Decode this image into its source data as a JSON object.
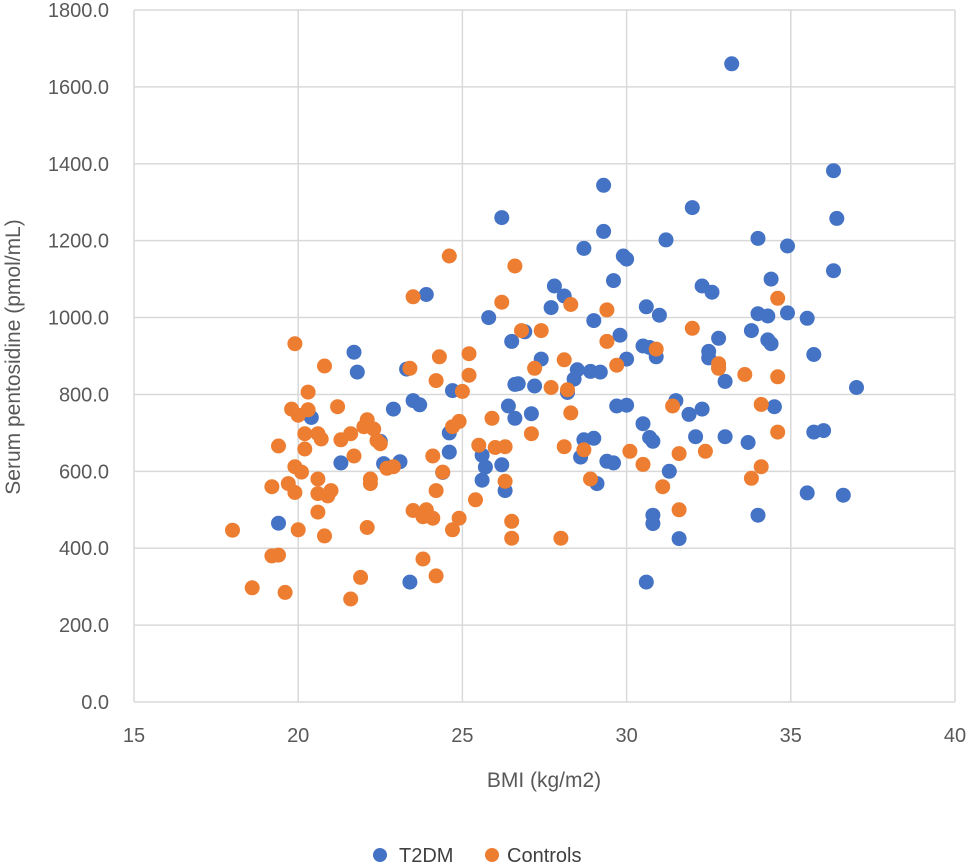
{
  "chart_data": {
    "type": "scatter",
    "title": "",
    "xlabel": "BMI (kg/m2)",
    "ylabel": "Serum pentosidine (pmol/mL)",
    "xlim": [
      15,
      40
    ],
    "ylim": [
      0,
      1800
    ],
    "xticks": [
      "15",
      "20",
      "25",
      "30",
      "35",
      "40"
    ],
    "yticks": [
      "0.0",
      "200.0",
      "400.0",
      "600.0",
      "800.0",
      "1000.0",
      "1200.0",
      "1400.0",
      "1600.0",
      "1800.0"
    ],
    "grid": true,
    "legend_position": "bottom",
    "series": [
      {
        "name": "T2DM",
        "color": "#4472c4",
        "points": [
          [
            19.4,
            465
          ],
          [
            20.4,
            740
          ],
          [
            21.3,
            622
          ],
          [
            21.7,
            910
          ],
          [
            21.8,
            858
          ],
          [
            22.5,
            678
          ],
          [
            22.6,
            620
          ],
          [
            22.9,
            762
          ],
          [
            23.1,
            625
          ],
          [
            23.3,
            866
          ],
          [
            23.4,
            312
          ],
          [
            23.5,
            784
          ],
          [
            23.7,
            773
          ],
          [
            23.9,
            1060
          ],
          [
            24.4,
            597
          ],
          [
            24.6,
            650
          ],
          [
            24.6,
            700
          ],
          [
            24.7,
            810
          ],
          [
            25.6,
            577
          ],
          [
            25.6,
            642
          ],
          [
            25.7,
            611
          ],
          [
            25.8,
            1000
          ],
          [
            26.2,
            617
          ],
          [
            26.2,
            1260
          ],
          [
            26.3,
            550
          ],
          [
            26.4,
            770
          ],
          [
            26.5,
            938
          ],
          [
            26.6,
            826
          ],
          [
            26.6,
            738
          ],
          [
            26.7,
            828
          ],
          [
            26.9,
            963
          ],
          [
            27.1,
            750
          ],
          [
            27.2,
            822
          ],
          [
            27.4,
            892
          ],
          [
            27.7,
            1026
          ],
          [
            27.8,
            1082
          ],
          [
            28.1,
            1056
          ],
          [
            28.2,
            805
          ],
          [
            28.4,
            840
          ],
          [
            28.5,
            864
          ],
          [
            28.6,
            637
          ],
          [
            28.7,
            682
          ],
          [
            28.7,
            1180
          ],
          [
            28.9,
            860
          ],
          [
            29.0,
            686
          ],
          [
            29.0,
            992
          ],
          [
            29.1,
            568
          ],
          [
            29.2,
            858
          ],
          [
            29.3,
            1344
          ],
          [
            29.3,
            1224
          ],
          [
            29.4,
            626
          ],
          [
            29.6,
            622
          ],
          [
            29.6,
            1096
          ],
          [
            29.7,
            770
          ],
          [
            29.8,
            954
          ],
          [
            29.9,
            1160
          ],
          [
            30.0,
            772
          ],
          [
            30.0,
            1152
          ],
          [
            30.0,
            892
          ],
          [
            30.5,
            724
          ],
          [
            30.5,
            926
          ],
          [
            30.6,
            1028
          ],
          [
            30.6,
            312
          ],
          [
            30.7,
            922
          ],
          [
            30.7,
            688
          ],
          [
            30.8,
            464
          ],
          [
            30.8,
            678
          ],
          [
            30.8,
            486
          ],
          [
            30.9,
            898
          ],
          [
            31.0,
            1006
          ],
          [
            31.2,
            1202
          ],
          [
            31.3,
            600
          ],
          [
            31.5,
            784
          ],
          [
            31.6,
            425
          ],
          [
            31.9,
            748
          ],
          [
            32.0,
            1286
          ],
          [
            32.1,
            690
          ],
          [
            32.3,
            1082
          ],
          [
            32.3,
            762
          ],
          [
            32.5,
            895
          ],
          [
            32.5,
            912
          ],
          [
            32.6,
            1066
          ],
          [
            32.8,
            946
          ],
          [
            32.8,
            870
          ],
          [
            33.0,
            690
          ],
          [
            33.0,
            834
          ],
          [
            33.2,
            1660
          ],
          [
            33.7,
            675
          ],
          [
            33.8,
            966
          ],
          [
            34.0,
            486
          ],
          [
            34.0,
            1206
          ],
          [
            34.0,
            1010
          ],
          [
            34.3,
            1004
          ],
          [
            34.3,
            942
          ],
          [
            34.4,
            932
          ],
          [
            34.4,
            1100
          ],
          [
            34.5,
            768
          ],
          [
            34.9,
            1186
          ],
          [
            34.9,
            1012
          ],
          [
            35.5,
            544
          ],
          [
            35.5,
            998
          ],
          [
            35.7,
            702
          ],
          [
            35.7,
            904
          ],
          [
            36.0,
            706
          ],
          [
            36.3,
            1382
          ],
          [
            36.3,
            1122
          ],
          [
            36.4,
            1258
          ],
          [
            36.6,
            538
          ],
          [
            37.0,
            818
          ]
        ]
      },
      {
        "name": "Controls",
        "color": "#ed7d31",
        "points": [
          [
            18.0,
            447
          ],
          [
            18.6,
            297
          ],
          [
            19.2,
            380
          ],
          [
            19.2,
            560
          ],
          [
            19.4,
            382
          ],
          [
            19.4,
            666
          ],
          [
            19.6,
            285
          ],
          [
            19.7,
            568
          ],
          [
            19.8,
            762
          ],
          [
            19.9,
            932
          ],
          [
            19.9,
            612
          ],
          [
            19.9,
            545
          ],
          [
            20.0,
            448
          ],
          [
            20.0,
            746
          ],
          [
            20.1,
            598
          ],
          [
            20.2,
            658
          ],
          [
            20.2,
            698
          ],
          [
            20.3,
            760
          ],
          [
            20.3,
            806
          ],
          [
            20.6,
            542
          ],
          [
            20.6,
            494
          ],
          [
            20.6,
            580
          ],
          [
            20.6,
            698
          ],
          [
            20.7,
            684
          ],
          [
            20.8,
            432
          ],
          [
            20.8,
            874
          ],
          [
            20.9,
            536
          ],
          [
            21.0,
            550
          ],
          [
            21.2,
            768
          ],
          [
            21.3,
            682
          ],
          [
            21.6,
            268
          ],
          [
            21.6,
            698
          ],
          [
            21.7,
            640
          ],
          [
            21.9,
            324
          ],
          [
            22.0,
            716
          ],
          [
            22.1,
            454
          ],
          [
            22.1,
            734
          ],
          [
            22.2,
            580
          ],
          [
            22.2,
            568
          ],
          [
            22.3,
            710
          ],
          [
            22.4,
            680
          ],
          [
            22.5,
            672
          ],
          [
            22.7,
            608
          ],
          [
            22.9,
            612
          ],
          [
            23.4,
            868
          ],
          [
            23.5,
            498
          ],
          [
            23.5,
            1054
          ],
          [
            23.8,
            482
          ],
          [
            23.8,
            372
          ],
          [
            23.9,
            500
          ],
          [
            24.1,
            640
          ],
          [
            24.1,
            478
          ],
          [
            24.2,
            328
          ],
          [
            24.2,
            836
          ],
          [
            24.2,
            550
          ],
          [
            24.3,
            898
          ],
          [
            24.4,
            598
          ],
          [
            24.6,
            1160
          ],
          [
            24.7,
            716
          ],
          [
            24.7,
            448
          ],
          [
            24.9,
            478
          ],
          [
            24.9,
            730
          ],
          [
            25.0,
            808
          ],
          [
            25.2,
            906
          ],
          [
            25.2,
            850
          ],
          [
            25.4,
            526
          ],
          [
            25.5,
            668
          ],
          [
            25.9,
            738
          ],
          [
            26.0,
            662
          ],
          [
            26.2,
            1040
          ],
          [
            26.3,
            664
          ],
          [
            26.3,
            574
          ],
          [
            26.5,
            470
          ],
          [
            26.5,
            426
          ],
          [
            26.6,
            1134
          ],
          [
            26.8,
            966
          ],
          [
            27.1,
            698
          ],
          [
            27.2,
            868
          ],
          [
            27.4,
            966
          ],
          [
            27.7,
            818
          ],
          [
            28.0,
            426
          ],
          [
            28.1,
            890
          ],
          [
            28.1,
            664
          ],
          [
            28.2,
            812
          ],
          [
            28.3,
            752
          ],
          [
            28.3,
            1034
          ],
          [
            28.7,
            656
          ],
          [
            28.9,
            580
          ],
          [
            29.4,
            938
          ],
          [
            29.4,
            1020
          ],
          [
            29.7,
            876
          ],
          [
            30.1,
            652
          ],
          [
            30.5,
            618
          ],
          [
            30.9,
            918
          ],
          [
            31.1,
            560
          ],
          [
            31.4,
            770
          ],
          [
            31.6,
            500
          ],
          [
            31.6,
            646
          ],
          [
            32.0,
            972
          ],
          [
            32.4,
            652
          ],
          [
            32.8,
            880
          ],
          [
            32.8,
            868
          ],
          [
            33.6,
            852
          ],
          [
            33.8,
            582
          ],
          [
            34.1,
            774
          ],
          [
            34.1,
            612
          ],
          [
            34.6,
            1050
          ],
          [
            34.6,
            846
          ],
          [
            34.6,
            702
          ]
        ]
      }
    ]
  }
}
